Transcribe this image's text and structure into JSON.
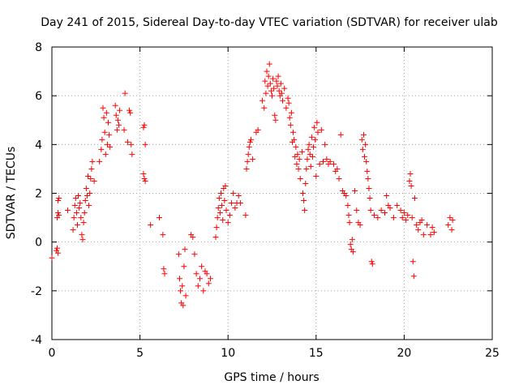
{
  "chart_data": {
    "type": "scatter",
    "title": "Day 241 of 2015, Sidereal Day-to-day VTEC variation (SDTVAR) for receiver ulab",
    "xlabel": "GPS time / hours",
    "ylabel": "SDTVAR / TECUs",
    "xlim": [
      0,
      25
    ],
    "ylim": [
      -4,
      8
    ],
    "xticks": [
      "0",
      "5",
      "10",
      "15",
      "20",
      "25"
    ],
    "yticks": [
      "-4",
      "-2",
      "0",
      "2",
      "4",
      "6",
      "8"
    ],
    "grid": true,
    "marker": "+",
    "color": "#ff0000",
    "series": [
      {
        "name": "SDTVAR",
        "points": [
          [
            0.0,
            -0.65
          ],
          [
            0.25,
            -0.35
          ],
          [
            0.3,
            -0.25
          ],
          [
            0.35,
            -0.45
          ],
          [
            0.3,
            1.0
          ],
          [
            0.35,
            1.2
          ],
          [
            0.4,
            1.1
          ],
          [
            0.35,
            1.7
          ],
          [
            0.4,
            1.8
          ],
          [
            0.9,
            1.3
          ],
          [
            1.2,
            0.5
          ],
          [
            1.25,
            1.0
          ],
          [
            1.3,
            1.5
          ],
          [
            1.35,
            1.8
          ],
          [
            1.4,
            1.2
          ],
          [
            1.45,
            0.7
          ],
          [
            1.5,
            1.9
          ],
          [
            1.55,
            1.4
          ],
          [
            1.6,
            1.6
          ],
          [
            1.65,
            1.0
          ],
          [
            1.7,
            0.3
          ],
          [
            1.75,
            0.1
          ],
          [
            1.8,
            0.8
          ],
          [
            1.85,
            1.2
          ],
          [
            1.9,
            1.7
          ],
          [
            1.95,
            2.2
          ],
          [
            2.0,
            1.9
          ],
          [
            2.05,
            2.7
          ],
          [
            2.1,
            1.5
          ],
          [
            2.15,
            2.0
          ],
          [
            2.2,
            2.6
          ],
          [
            2.25,
            3.0
          ],
          [
            2.3,
            3.3
          ],
          [
            2.4,
            2.5
          ],
          [
            2.7,
            3.3
          ],
          [
            2.8,
            3.8
          ],
          [
            2.85,
            4.2
          ],
          [
            2.9,
            5.5
          ],
          [
            2.95,
            5.1
          ],
          [
            3.0,
            4.5
          ],
          [
            3.05,
            3.6
          ],
          [
            3.1,
            5.3
          ],
          [
            3.15,
            4.0
          ],
          [
            3.2,
            4.9
          ],
          [
            3.25,
            4.4
          ],
          [
            3.3,
            3.9
          ],
          [
            3.6,
            5.6
          ],
          [
            3.65,
            5.2
          ],
          [
            3.7,
            4.6
          ],
          [
            3.75,
            5.0
          ],
          [
            3.8,
            4.8
          ],
          [
            3.85,
            5.4
          ],
          [
            4.1,
            4.6
          ],
          [
            4.15,
            6.1
          ],
          [
            4.3,
            4.1
          ],
          [
            4.4,
            5.4
          ],
          [
            4.45,
            5.3
          ],
          [
            4.5,
            4.0
          ],
          [
            4.55,
            3.6
          ],
          [
            5.2,
            4.7
          ],
          [
            5.25,
            4.8
          ],
          [
            5.3,
            4.0
          ],
          [
            5.2,
            2.8
          ],
          [
            5.25,
            2.6
          ],
          [
            5.3,
            2.5
          ],
          [
            5.6,
            0.7
          ],
          [
            6.1,
            1.0
          ],
          [
            6.3,
            0.3
          ],
          [
            6.35,
            -1.1
          ],
          [
            6.4,
            -1.3
          ],
          [
            7.2,
            -0.5
          ],
          [
            7.25,
            -1.5
          ],
          [
            7.3,
            -2.0
          ],
          [
            7.35,
            -2.5
          ],
          [
            7.4,
            -1.8
          ],
          [
            7.45,
            -2.6
          ],
          [
            7.5,
            -1.0
          ],
          [
            7.55,
            -0.3
          ],
          [
            7.6,
            -2.2
          ],
          [
            7.9,
            0.3
          ],
          [
            8.0,
            0.2
          ],
          [
            8.1,
            -0.5
          ],
          [
            8.2,
            -1.3
          ],
          [
            8.3,
            -1.8
          ],
          [
            8.4,
            -1.5
          ],
          [
            8.5,
            -1.0
          ],
          [
            8.6,
            -2.0
          ],
          [
            8.7,
            -1.2
          ],
          [
            8.8,
            -1.3
          ],
          [
            8.9,
            -1.7
          ],
          [
            9.0,
            -1.5
          ],
          [
            9.3,
            0.2
          ],
          [
            9.35,
            0.6
          ],
          [
            9.4,
            1.0
          ],
          [
            9.45,
            1.4
          ],
          [
            9.5,
            1.8
          ],
          [
            9.55,
            1.2
          ],
          [
            9.6,
            2.0
          ],
          [
            9.65,
            1.5
          ],
          [
            9.7,
            0.9
          ],
          [
            9.75,
            2.2
          ],
          [
            9.8,
            1.7
          ],
          [
            9.85,
            2.3
          ],
          [
            9.9,
            1.3
          ],
          [
            10.0,
            0.8
          ],
          [
            10.1,
            1.1
          ],
          [
            10.2,
            1.6
          ],
          [
            10.3,
            2.0
          ],
          [
            10.4,
            1.4
          ],
          [
            10.5,
            1.6
          ],
          [
            10.6,
            1.9
          ],
          [
            10.7,
            1.6
          ],
          [
            11.0,
            1.1
          ],
          [
            11.05,
            3.0
          ],
          [
            11.1,
            3.3
          ],
          [
            11.15,
            3.6
          ],
          [
            11.2,
            3.9
          ],
          [
            11.25,
            4.1
          ],
          [
            11.3,
            4.2
          ],
          [
            11.4,
            3.4
          ],
          [
            11.6,
            4.5
          ],
          [
            11.7,
            4.6
          ],
          [
            11.95,
            5.8
          ],
          [
            12.05,
            5.5
          ],
          [
            12.1,
            6.6
          ],
          [
            12.15,
            6.1
          ],
          [
            12.2,
            7.0
          ],
          [
            12.25,
            6.4
          ],
          [
            12.3,
            6.8
          ],
          [
            12.35,
            7.3
          ],
          [
            12.4,
            6.5
          ],
          [
            12.45,
            6.2
          ],
          [
            12.5,
            6.0
          ],
          [
            12.55,
            6.7
          ],
          [
            12.6,
            6.3
          ],
          [
            12.65,
            5.2
          ],
          [
            12.7,
            5.0
          ],
          [
            12.75,
            6.6
          ],
          [
            12.8,
            6.4
          ],
          [
            12.85,
            6.8
          ],
          [
            12.9,
            6.2
          ],
          [
            12.95,
            6.0
          ],
          [
            13.0,
            6.5
          ],
          [
            13.05,
            6.1
          ],
          [
            13.1,
            5.8
          ],
          [
            13.2,
            6.3
          ],
          [
            13.3,
            5.5
          ],
          [
            13.4,
            5.9
          ],
          [
            13.45,
            5.7
          ],
          [
            13.5,
            5.1
          ],
          [
            13.55,
            4.8
          ],
          [
            13.6,
            5.3
          ],
          [
            13.65,
            4.1
          ],
          [
            13.7,
            4.5
          ],
          [
            13.75,
            4.2
          ],
          [
            13.8,
            3.5
          ],
          [
            13.85,
            3.9
          ],
          [
            13.9,
            3.2
          ],
          [
            13.95,
            3.6
          ],
          [
            14.0,
            3.0
          ],
          [
            14.05,
            3.4
          ],
          [
            14.1,
            2.6
          ],
          [
            14.2,
            3.7
          ],
          [
            14.25,
            2.0
          ],
          [
            14.3,
            1.7
          ],
          [
            14.35,
            1.3
          ],
          [
            14.4,
            2.4
          ],
          [
            14.45,
            3.0
          ],
          [
            14.5,
            3.4
          ],
          [
            14.55,
            3.8
          ],
          [
            14.6,
            4.0
          ],
          [
            14.65,
            3.6
          ],
          [
            14.7,
            3.1
          ],
          [
            14.75,
            4.3
          ],
          [
            14.8,
            3.5
          ],
          [
            14.85,
            3.9
          ],
          [
            14.9,
            4.7
          ],
          [
            14.95,
            4.2
          ],
          [
            15.0,
            2.7
          ],
          [
            15.05,
            4.9
          ],
          [
            15.1,
            4.5
          ],
          [
            15.2,
            3.2
          ],
          [
            15.3,
            4.6
          ],
          [
            15.4,
            3.3
          ],
          [
            15.5,
            4.0
          ],
          [
            15.6,
            3.4
          ],
          [
            15.7,
            3.2
          ],
          [
            15.8,
            3.3
          ],
          [
            16.0,
            3.2
          ],
          [
            16.1,
            2.9
          ],
          [
            16.2,
            3.0
          ],
          [
            16.3,
            2.6
          ],
          [
            16.4,
            4.4
          ],
          [
            16.5,
            2.1
          ],
          [
            16.6,
            2.0
          ],
          [
            16.7,
            1.9
          ],
          [
            16.8,
            1.5
          ],
          [
            16.85,
            1.1
          ],
          [
            16.9,
            0.8
          ],
          [
            16.95,
            -0.1
          ],
          [
            17.0,
            -0.3
          ],
          [
            17.05,
            0.1
          ],
          [
            17.1,
            -0.4
          ],
          [
            17.2,
            2.1
          ],
          [
            17.3,
            1.3
          ],
          [
            17.4,
            0.8
          ],
          [
            17.5,
            0.7
          ],
          [
            17.6,
            4.2
          ],
          [
            17.65,
            3.8
          ],
          [
            17.7,
            4.4
          ],
          [
            17.75,
            3.5
          ],
          [
            17.8,
            4.0
          ],
          [
            17.85,
            3.3
          ],
          [
            17.9,
            2.9
          ],
          [
            17.95,
            2.6
          ],
          [
            18.0,
            2.2
          ],
          [
            18.05,
            1.8
          ],
          [
            18.1,
            1.3
          ],
          [
            18.15,
            -0.8
          ],
          [
            18.2,
            -0.9
          ],
          [
            18.3,
            1.1
          ],
          [
            18.5,
            1.0
          ],
          [
            18.7,
            1.3
          ],
          [
            18.9,
            1.2
          ],
          [
            19.0,
            1.9
          ],
          [
            19.1,
            1.5
          ],
          [
            19.2,
            1.4
          ],
          [
            19.4,
            1.0
          ],
          [
            19.6,
            1.5
          ],
          [
            19.8,
            1.3
          ],
          [
            19.9,
            1.0
          ],
          [
            20.0,
            1.2
          ],
          [
            20.1,
            0.9
          ],
          [
            20.2,
            1.1
          ],
          [
            20.3,
            2.5
          ],
          [
            20.35,
            2.8
          ],
          [
            20.4,
            2.3
          ],
          [
            20.45,
            1.0
          ],
          [
            20.5,
            -0.8
          ],
          [
            20.55,
            -1.4
          ],
          [
            20.6,
            1.8
          ],
          [
            20.7,
            0.7
          ],
          [
            20.8,
            0.5
          ],
          [
            20.9,
            0.8
          ],
          [
            21.0,
            0.9
          ],
          [
            21.1,
            0.3
          ],
          [
            21.3,
            0.7
          ],
          [
            21.5,
            0.3
          ],
          [
            21.6,
            0.6
          ],
          [
            21.7,
            0.4
          ],
          [
            22.5,
            0.7
          ],
          [
            22.6,
            1.0
          ],
          [
            22.7,
            0.5
          ],
          [
            22.75,
            0.9
          ]
        ]
      }
    ]
  }
}
